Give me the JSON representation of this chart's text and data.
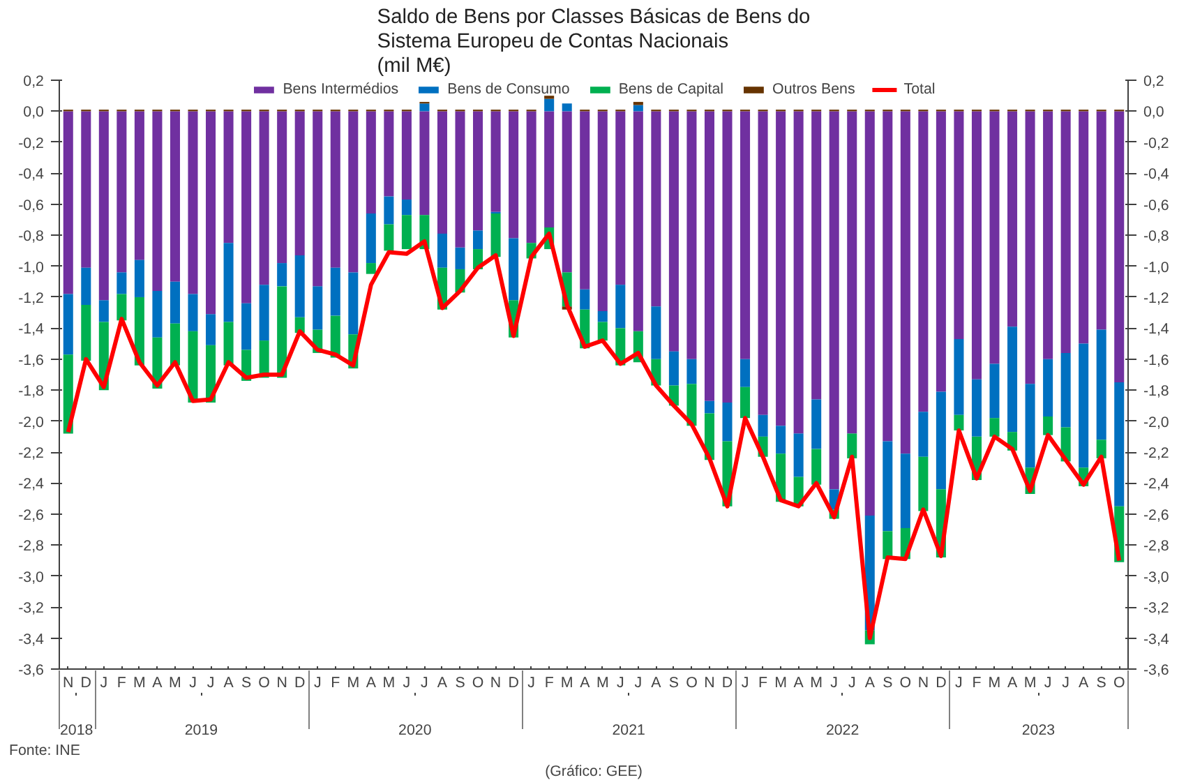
{
  "chart_data": {
    "type": "bar",
    "stacked": true,
    "title": "Saldo de Bens por Classes Básicas de Bens do\nSistema Europeu de Contas Nacionais\n(mil M€)",
    "categories": [
      "N",
      "D",
      "J",
      "F",
      "M",
      "A",
      "M",
      "J",
      "J",
      "A",
      "S",
      "O",
      "N",
      "D",
      "J",
      "F",
      "M",
      "A",
      "M",
      "J",
      "J",
      "A",
      "S",
      "O",
      "N",
      "D",
      "J",
      "F",
      "M",
      "A",
      "M",
      "J",
      "J",
      "A",
      "S",
      "O",
      "N",
      "D",
      "J",
      "F",
      "M",
      "A",
      "M",
      "J",
      "J",
      "A",
      "S",
      "O",
      "N",
      "D",
      "J",
      "F",
      "M",
      "A",
      "M",
      "J",
      "J",
      "A",
      "S",
      "O"
    ],
    "x2lim": [
      "2018-10-16",
      "2023-10-16"
    ],
    "x2ticks": [
      {
        "value": "2018-11-15",
        "label": "2018"
      },
      {
        "value": "2019-06-15",
        "label": "2019"
      },
      {
        "value": "2020-06-15",
        "label": "2020"
      },
      {
        "value": "2021-06-15",
        "label": "2021"
      },
      {
        "value": "2022-06-15",
        "label": "2022"
      },
      {
        "value": "2023-05-15",
        "label": "2023"
      }
    ],
    "ylim": [
      -3.6,
      0.2
    ],
    "yticks": [
      {
        "value": 0.2,
        "label": "0,2"
      },
      {
        "value": 0,
        "label": "0,0"
      },
      {
        "value": -0.2,
        "label": "-0,2"
      },
      {
        "value": -0.4,
        "label": "-0,4"
      },
      {
        "value": -0.6,
        "label": "-0,6"
      },
      {
        "value": -0.8,
        "label": "-0,8"
      },
      {
        "value": -1.0,
        "label": "-1,0"
      },
      {
        "value": -1.2,
        "label": "-1,2"
      },
      {
        "value": -1.4,
        "label": "-1,4"
      },
      {
        "value": -1.6,
        "label": "-1,6"
      },
      {
        "value": -1.8,
        "label": "-1,8"
      },
      {
        "value": -2.0,
        "label": "-2,0"
      },
      {
        "value": -2.2,
        "label": "-2,2"
      },
      {
        "value": -2.4,
        "label": "-2,4"
      },
      {
        "value": -2.6,
        "label": "-2,6"
      },
      {
        "value": -2.8,
        "label": "-2,8"
      },
      {
        "value": -3.0,
        "label": "-3,0"
      },
      {
        "value": -3.2,
        "label": "-3,2"
      },
      {
        "value": -3.4,
        "label": "-3,4"
      },
      {
        "value": -3.6,
        "label": "-3,6"
      }
    ],
    "y2lim": [
      -3.6,
      0.2
    ],
    "y2ticks": [
      {
        "value": 0.2,
        "label": "0,2"
      },
      {
        "value": 0,
        "label": "0,0"
      },
      {
        "value": -0.2,
        "label": "-0,2"
      },
      {
        "value": -0.4,
        "label": "-0,4"
      },
      {
        "value": -0.6,
        "label": "-0,6"
      },
      {
        "value": -0.8,
        "label": "-0,8"
      },
      {
        "value": -1.0,
        "label": "-1,0"
      },
      {
        "value": -1.2,
        "label": "-1,2"
      },
      {
        "value": -1.4,
        "label": "-1,4"
      },
      {
        "value": -1.6,
        "label": "-1,6"
      },
      {
        "value": -1.8,
        "label": "-1,8"
      },
      {
        "value": -2.0,
        "label": "-2,0"
      },
      {
        "value": -2.2,
        "label": "-2,2"
      },
      {
        "value": -2.4,
        "label": "-2,4"
      },
      {
        "value": -2.6,
        "label": "-2,6"
      },
      {
        "value": -2.8,
        "label": "-2,8"
      },
      {
        "value": -3.0,
        "label": "-3,0"
      },
      {
        "value": -3.2,
        "label": "-3,2"
      },
      {
        "value": -3.4,
        "label": "-3,4"
      },
      {
        "value": -3.6,
        "label": "-3,6"
      }
    ],
    "grid": false,
    "legend": "top",
    "marker": "none",
    "line_style": "solid",
    "series": [
      {
        "name": "Bens Intermédios",
        "color": "#7030a0",
        "values": [
          -1.18,
          -1.01,
          -1.22,
          -1.04,
          -0.96,
          -1.16,
          -1.1,
          -1.18,
          -1.31,
          -0.85,
          -1.24,
          -1.12,
          -0.98,
          -0.93,
          -1.13,
          -1.01,
          -1.04,
          -0.66,
          -0.55,
          -0.57,
          -0.67,
          -0.79,
          -0.88,
          -0.77,
          -0.65,
          -0.82,
          -0.85,
          -0.75,
          -1.04,
          -1.15,
          -1.29,
          -1.12,
          -1.42,
          -1.26,
          -1.55,
          -1.6,
          -1.87,
          -1.88,
          -1.6,
          -1.96,
          -2.03,
          -2.08,
          -1.86,
          -2.44,
          -2.08,
          -2.61,
          -2.13,
          -2.21,
          -1.94,
          -1.81,
          -1.47,
          -1.73,
          -1.63,
          -1.39,
          -1.76,
          -1.6,
          -1.56,
          -1.5,
          -1.41,
          -1.75
        ]
      },
      {
        "name": "Bens de Consumo",
        "color": "#0070c0",
        "values": [
          -0.39,
          -0.24,
          -0.14,
          -0.14,
          -0.24,
          -0.3,
          -0.27,
          -0.24,
          -0.2,
          -0.51,
          -0.3,
          -0.36,
          -0.15,
          -0.4,
          -0.28,
          -0.31,
          -0.4,
          -0.32,
          -0.18,
          -0.1,
          0.05,
          -0.22,
          -0.14,
          -0.12,
          -0.01,
          -0.4,
          0,
          0.08,
          0.05,
          -0.13,
          -0.07,
          -0.28,
          0.04,
          -0.34,
          -0.22,
          -0.16,
          -0.08,
          -0.25,
          -0.18,
          -0.14,
          -0.18,
          -0.28,
          -0.32,
          -0.13,
          0,
          -0.74,
          -0.58,
          -0.48,
          -0.29,
          -0.63,
          -0.49,
          -0.37,
          -0.35,
          -0.68,
          -0.54,
          -0.37,
          -0.48,
          -0.8,
          -0.71,
          -0.8
        ]
      },
      {
        "name": "Bens de Capital",
        "color": "#00b050",
        "values": [
          -0.51,
          -0.36,
          -0.44,
          -0.17,
          -0.44,
          -0.33,
          -0.27,
          -0.46,
          -0.37,
          -0.28,
          -0.2,
          -0.24,
          -0.59,
          -0.1,
          -0.15,
          -0.27,
          -0.22,
          -0.07,
          -0.17,
          -0.22,
          -0.22,
          -0.27,
          -0.15,
          -0.13,
          -0.28,
          -0.24,
          -0.1,
          -0.14,
          -0.22,
          -0.25,
          -0.12,
          -0.24,
          -0.2,
          -0.17,
          -0.13,
          -0.27,
          -0.3,
          -0.42,
          -0.2,
          -0.13,
          -0.31,
          -0.19,
          -0.23,
          -0.06,
          -0.16,
          -0.09,
          -0.18,
          -0.2,
          -0.35,
          -0.44,
          -0.1,
          -0.28,
          -0.12,
          -0.12,
          -0.17,
          -0.12,
          -0.22,
          -0.12,
          -0.12,
          -0.36
        ]
      },
      {
        "name": "Outros Bens",
        "color": "#663300",
        "values": [
          0.01,
          0.01,
          0.01,
          0.01,
          0.01,
          0.01,
          0.01,
          0.01,
          0.01,
          0.01,
          0.01,
          0.01,
          0.01,
          0.01,
          0.01,
          0.01,
          0.01,
          0.01,
          0.01,
          0.01,
          0.01,
          0.01,
          0.01,
          0.01,
          0.01,
          0.01,
          0.01,
          0.02,
          -0.02,
          0.01,
          0.01,
          0.01,
          0.02,
          0.01,
          0.01,
          0.01,
          0.01,
          0.01,
          0.01,
          0.01,
          0.01,
          0.01,
          0.01,
          0.01,
          0.01,
          0.01,
          0.01,
          0.01,
          0.01,
          0.01,
          0.01,
          0.01,
          0.01,
          0.01,
          0.01,
          0.01,
          0.01,
          0.01,
          0.01,
          0.01
        ]
      },
      {
        "name": "Total",
        "color": "#ff0000",
        "type": "line",
        "values": [
          -2.07,
          -1.6,
          -1.78,
          -1.34,
          -1.62,
          -1.77,
          -1.62,
          -1.87,
          -1.86,
          -1.62,
          -1.72,
          -1.7,
          -1.7,
          -1.42,
          -1.54,
          -1.57,
          -1.64,
          -1.12,
          -0.91,
          -0.92,
          -0.84,
          -1.27,
          -1.16,
          -1.01,
          -0.93,
          -1.45,
          -0.94,
          -0.79,
          -1.25,
          -1.52,
          -1.48,
          -1.63,
          -1.56,
          -1.77,
          -1.9,
          -2.02,
          -2.24,
          -2.55,
          -1.98,
          -2.23,
          -2.51,
          -2.55,
          -2.4,
          -2.62,
          -2.23,
          -3.4,
          -2.88,
          -2.89,
          -2.57,
          -2.87,
          -2.06,
          -2.37,
          -2.1,
          -2.18,
          -2.45,
          -2.09,
          -2.25,
          -2.41,
          -2.23,
          -2.9
        ]
      }
    ],
    "annotations": [
      "Fonte: INE",
      "(Gráfico: GEE)"
    ]
  }
}
